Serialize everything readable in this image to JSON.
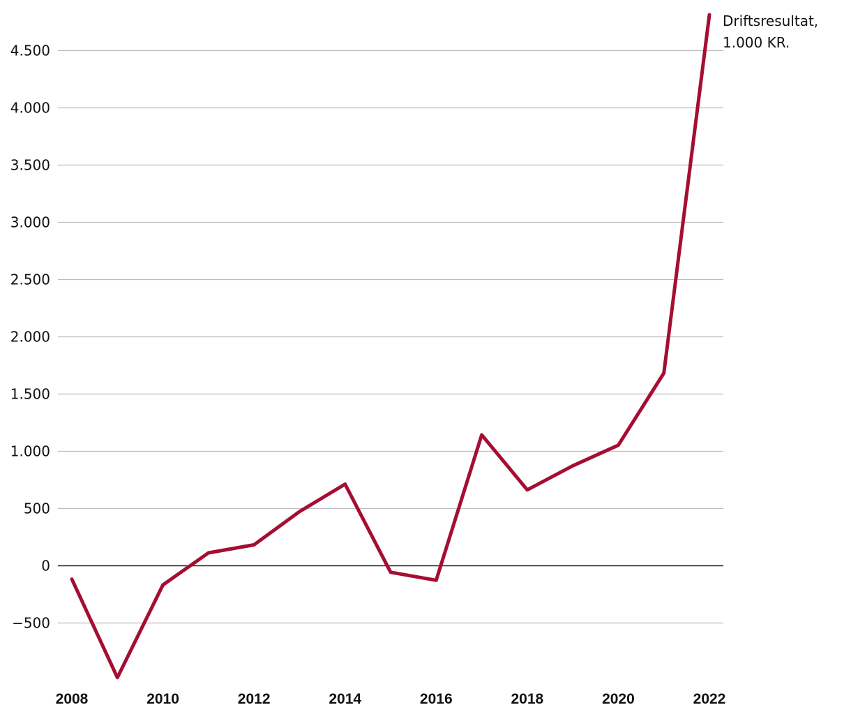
{
  "chart_data": {
    "type": "line",
    "title": "",
    "xlabel": "",
    "ylabel": "",
    "x": [
      2008,
      2009,
      2010,
      2011,
      2012,
      2013,
      2014,
      2015,
      2016,
      2017,
      2018,
      2019,
      2020,
      2021,
      2022
    ],
    "series": [
      {
        "name": "Driftsresultat, 1.000 KR.",
        "label_lines": [
          "Driftsresultat,",
          "1.000 KR."
        ],
        "color": "#a50e32",
        "values": [
          -120,
          -980,
          -170,
          110,
          180,
          470,
          710,
          -60,
          -130,
          1140,
          660,
          870,
          1050,
          1680,
          4810
        ]
      }
    ],
    "yticks": [
      -500,
      0,
      500,
      1000,
      1500,
      2000,
      2500,
      3000,
      3500,
      4000,
      4500
    ],
    "ytick_labels": [
      "−500",
      "0",
      "500",
      "1.000",
      "1.500",
      "2.000",
      "2.500",
      "3.000",
      "3.500",
      "4.000",
      "4.500"
    ],
    "xticks": [
      2008,
      2010,
      2012,
      2014,
      2016,
      2018,
      2020,
      2022
    ],
    "xtick_labels": [
      "2008",
      "2010",
      "2012",
      "2014",
      "2016",
      "2018",
      "2020",
      "2022"
    ],
    "ylim": [
      -1000,
      4850
    ],
    "xlim": [
      2008,
      2022
    ],
    "grid": true,
    "gridline_color": "#bdbdbd",
    "zero_line_color": "#222222"
  }
}
